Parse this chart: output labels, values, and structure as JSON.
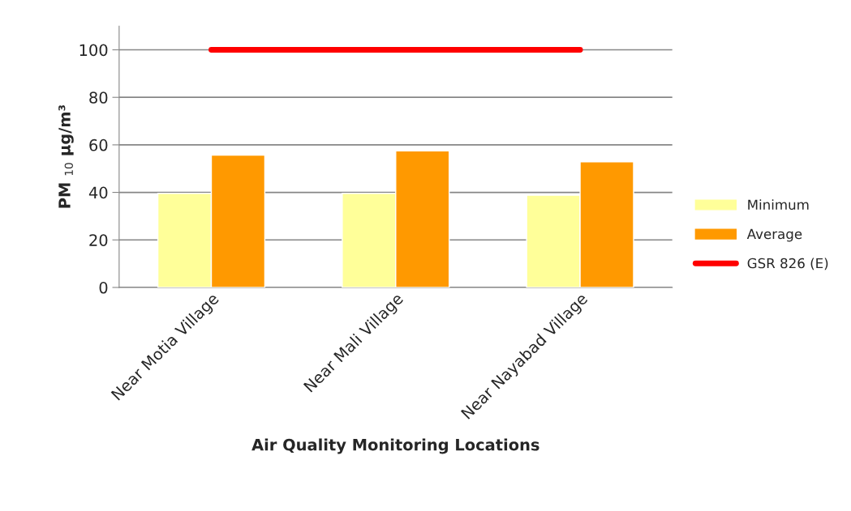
{
  "chart_data": {
    "type": "bar",
    "xlabel": "Air Quality Monitoring Locations",
    "ylabel": "PM $_{10}$ µg/m³",
    "categories": [
      "Near Motia Village",
      "Near Mali Village",
      "Near Nayabad Village"
    ],
    "series": [
      {
        "name": "Minimum",
        "color": "#ffff99",
        "values": [
          39.6,
          39.6,
          38.8
        ]
      },
      {
        "name": "Average",
        "color": "#ff9900",
        "values": [
          55.7,
          57.5,
          52.9
        ]
      },
      {
        "name": "GSR 826 (E)",
        "type": "line",
        "color": "#ff0000",
        "values": [
          100,
          100,
          100
        ]
      }
    ],
    "ylim": [
      0,
      110
    ],
    "yticks": [
      0,
      20,
      40,
      60,
      80,
      100
    ],
    "grid": "y",
    "legend": "right"
  }
}
